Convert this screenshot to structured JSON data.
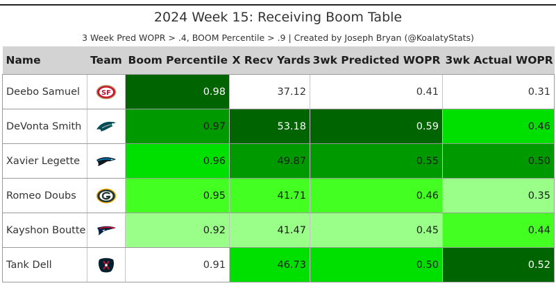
{
  "header": {
    "title": "2024 Week 15: Receiving Boom Table",
    "subtitle": "3 Week Pred WOPR > .4, BOOM Percentile > .9 | Created by Joseph Bryan (@KoalatyStats)"
  },
  "chart_data": {
    "type": "table",
    "title": "2024 Week 15: Receiving Boom Table",
    "columns": [
      "Name",
      "Team",
      "Boom Percentile",
      "X Recv Yards",
      "3wk Predicted WOPR",
      "3wk Actual WOPR"
    ],
    "rows": [
      {
        "name": "Deebo Samuel",
        "team_logo": "49ers-logo-icon",
        "boom": "0.98",
        "xrecv": "37.12",
        "pred": "0.41",
        "actual": "0.31"
      },
      {
        "name": "DeVonta Smith",
        "team_logo": "eagles-logo-icon",
        "boom": "0.97",
        "xrecv": "53.18",
        "pred": "0.59",
        "actual": "0.46"
      },
      {
        "name": "Xavier Legette",
        "team_logo": "panthers-logo-icon",
        "boom": "0.96",
        "xrecv": "49.87",
        "pred": "0.55",
        "actual": "0.50"
      },
      {
        "name": "Romeo Doubs",
        "team_logo": "packers-logo-icon",
        "boom": "0.95",
        "xrecv": "41.71",
        "pred": "0.46",
        "actual": "0.35"
      },
      {
        "name": "Kayshon Boutte",
        "team_logo": "patriots-logo-icon",
        "boom": "0.92",
        "xrecv": "41.47",
        "pred": "0.45",
        "actual": "0.44"
      },
      {
        "name": "Tank Dell",
        "team_logo": "texans-logo-icon",
        "boom": "0.91",
        "xrecv": "46.73",
        "pred": "0.50",
        "actual": "0.52"
      }
    ],
    "colors": {
      "darkest_green": "#006400",
      "dark_green": "#009a00",
      "bright_green": "#00e000",
      "light_green": "#44ff22",
      "pale_green": "#99ff88",
      "white": "#ffffff"
    }
  }
}
